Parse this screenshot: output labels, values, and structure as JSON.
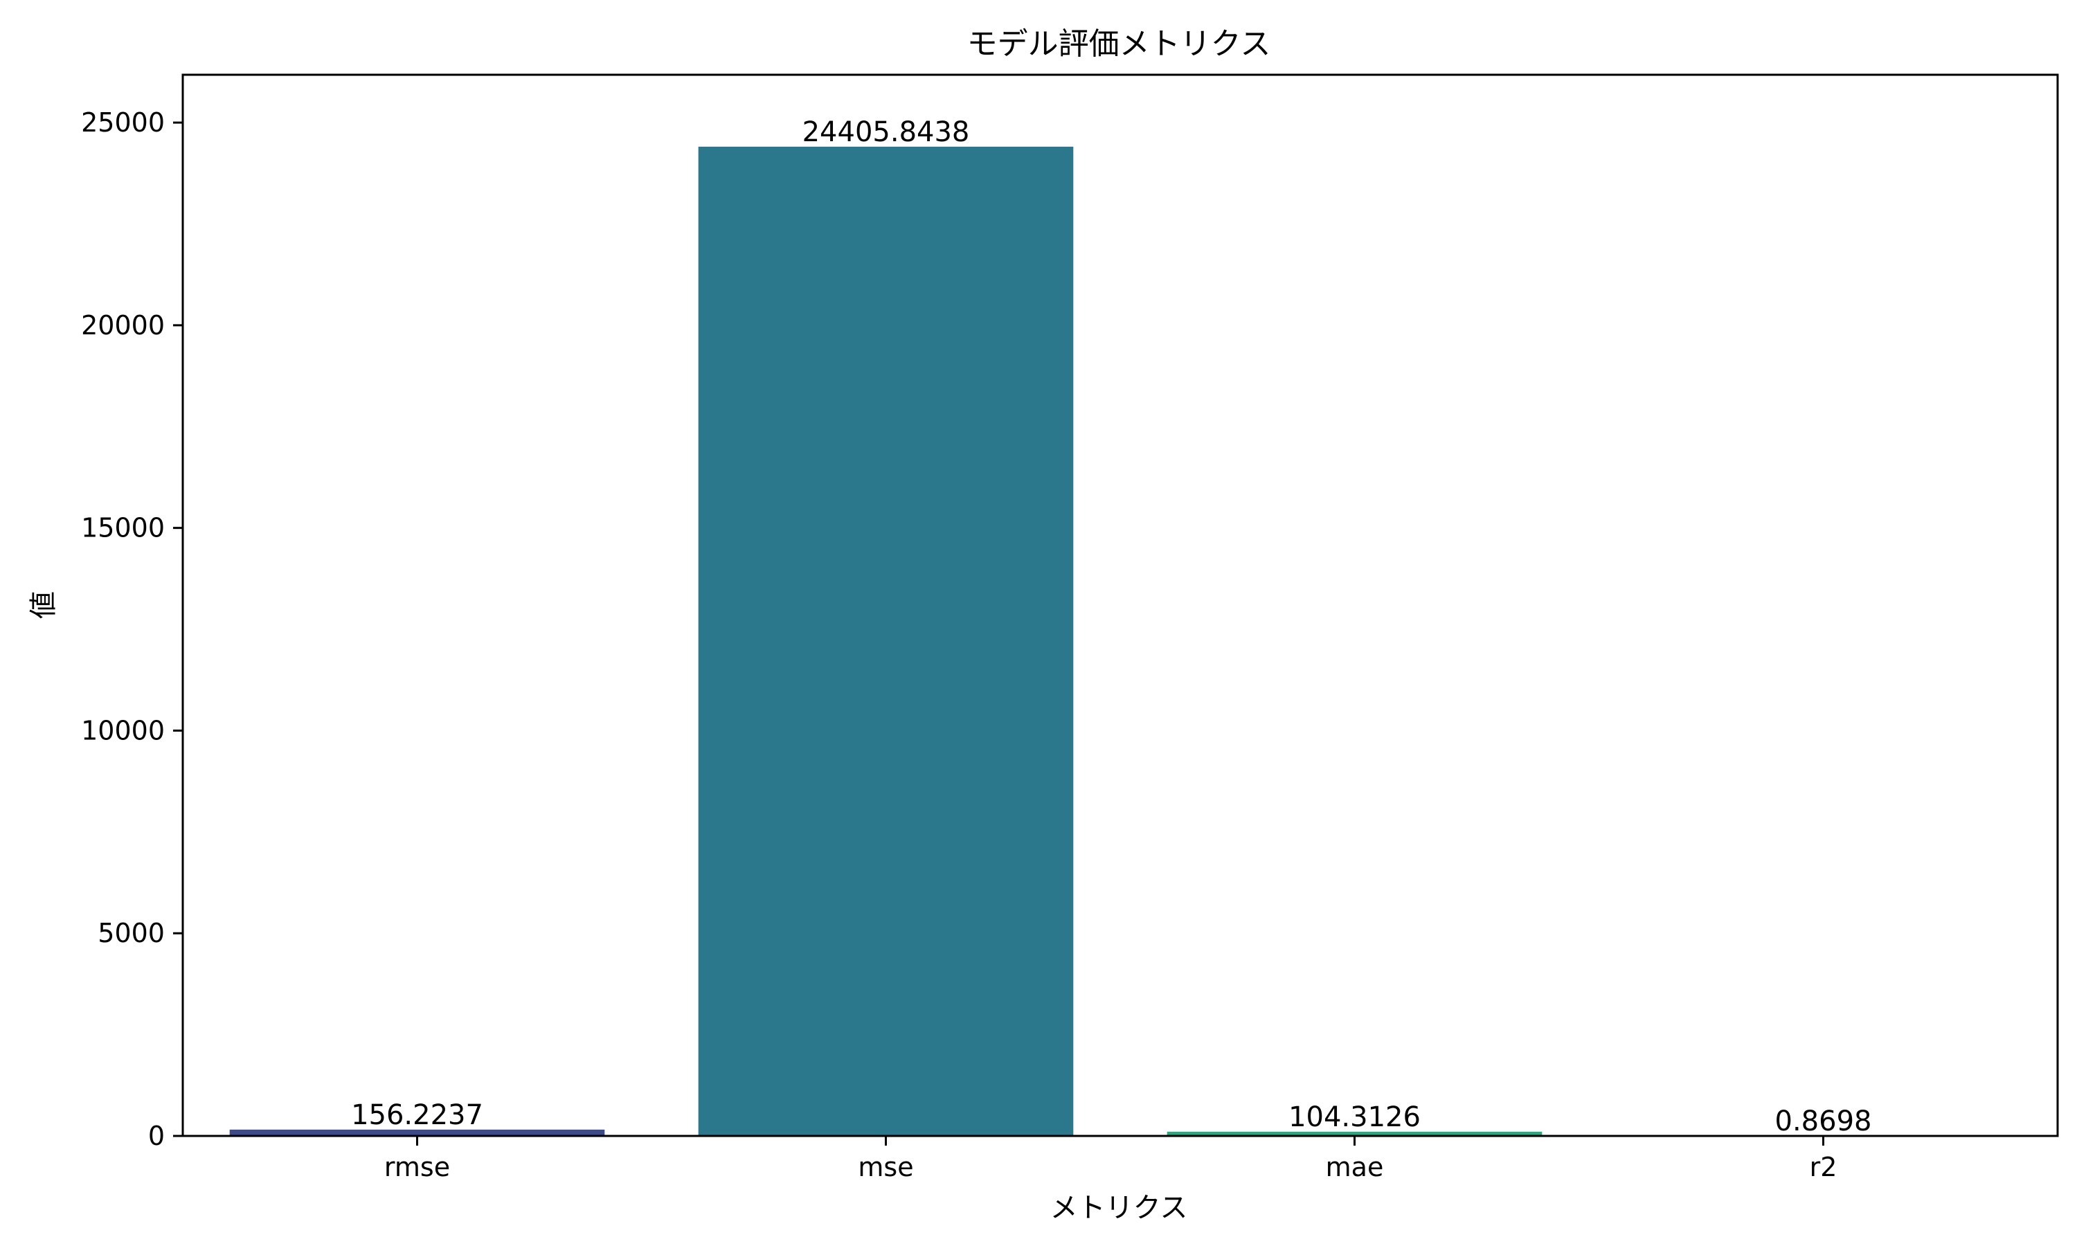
{
  "chart_data": {
    "type": "bar",
    "title": "モデル評価メトリクス",
    "xlabel": "メトリクス",
    "ylabel": "値",
    "categories": [
      "rmse",
      "mse",
      "mae",
      "r2"
    ],
    "values": [
      156.2237,
      24405.8438,
      104.3126,
      0.8698
    ],
    "value_labels": [
      "156.2237",
      "24405.8438",
      "104.3126",
      "0.8698"
    ],
    "colors": [
      "#3b4a8a",
      "#2b788c",
      "#25ab82",
      "#5ec962"
    ],
    "ylim": [
      0,
      26180
    ],
    "yticks": [
      0,
      5000,
      10000,
      15000,
      20000,
      25000
    ],
    "grid": false,
    "legend": "none"
  }
}
